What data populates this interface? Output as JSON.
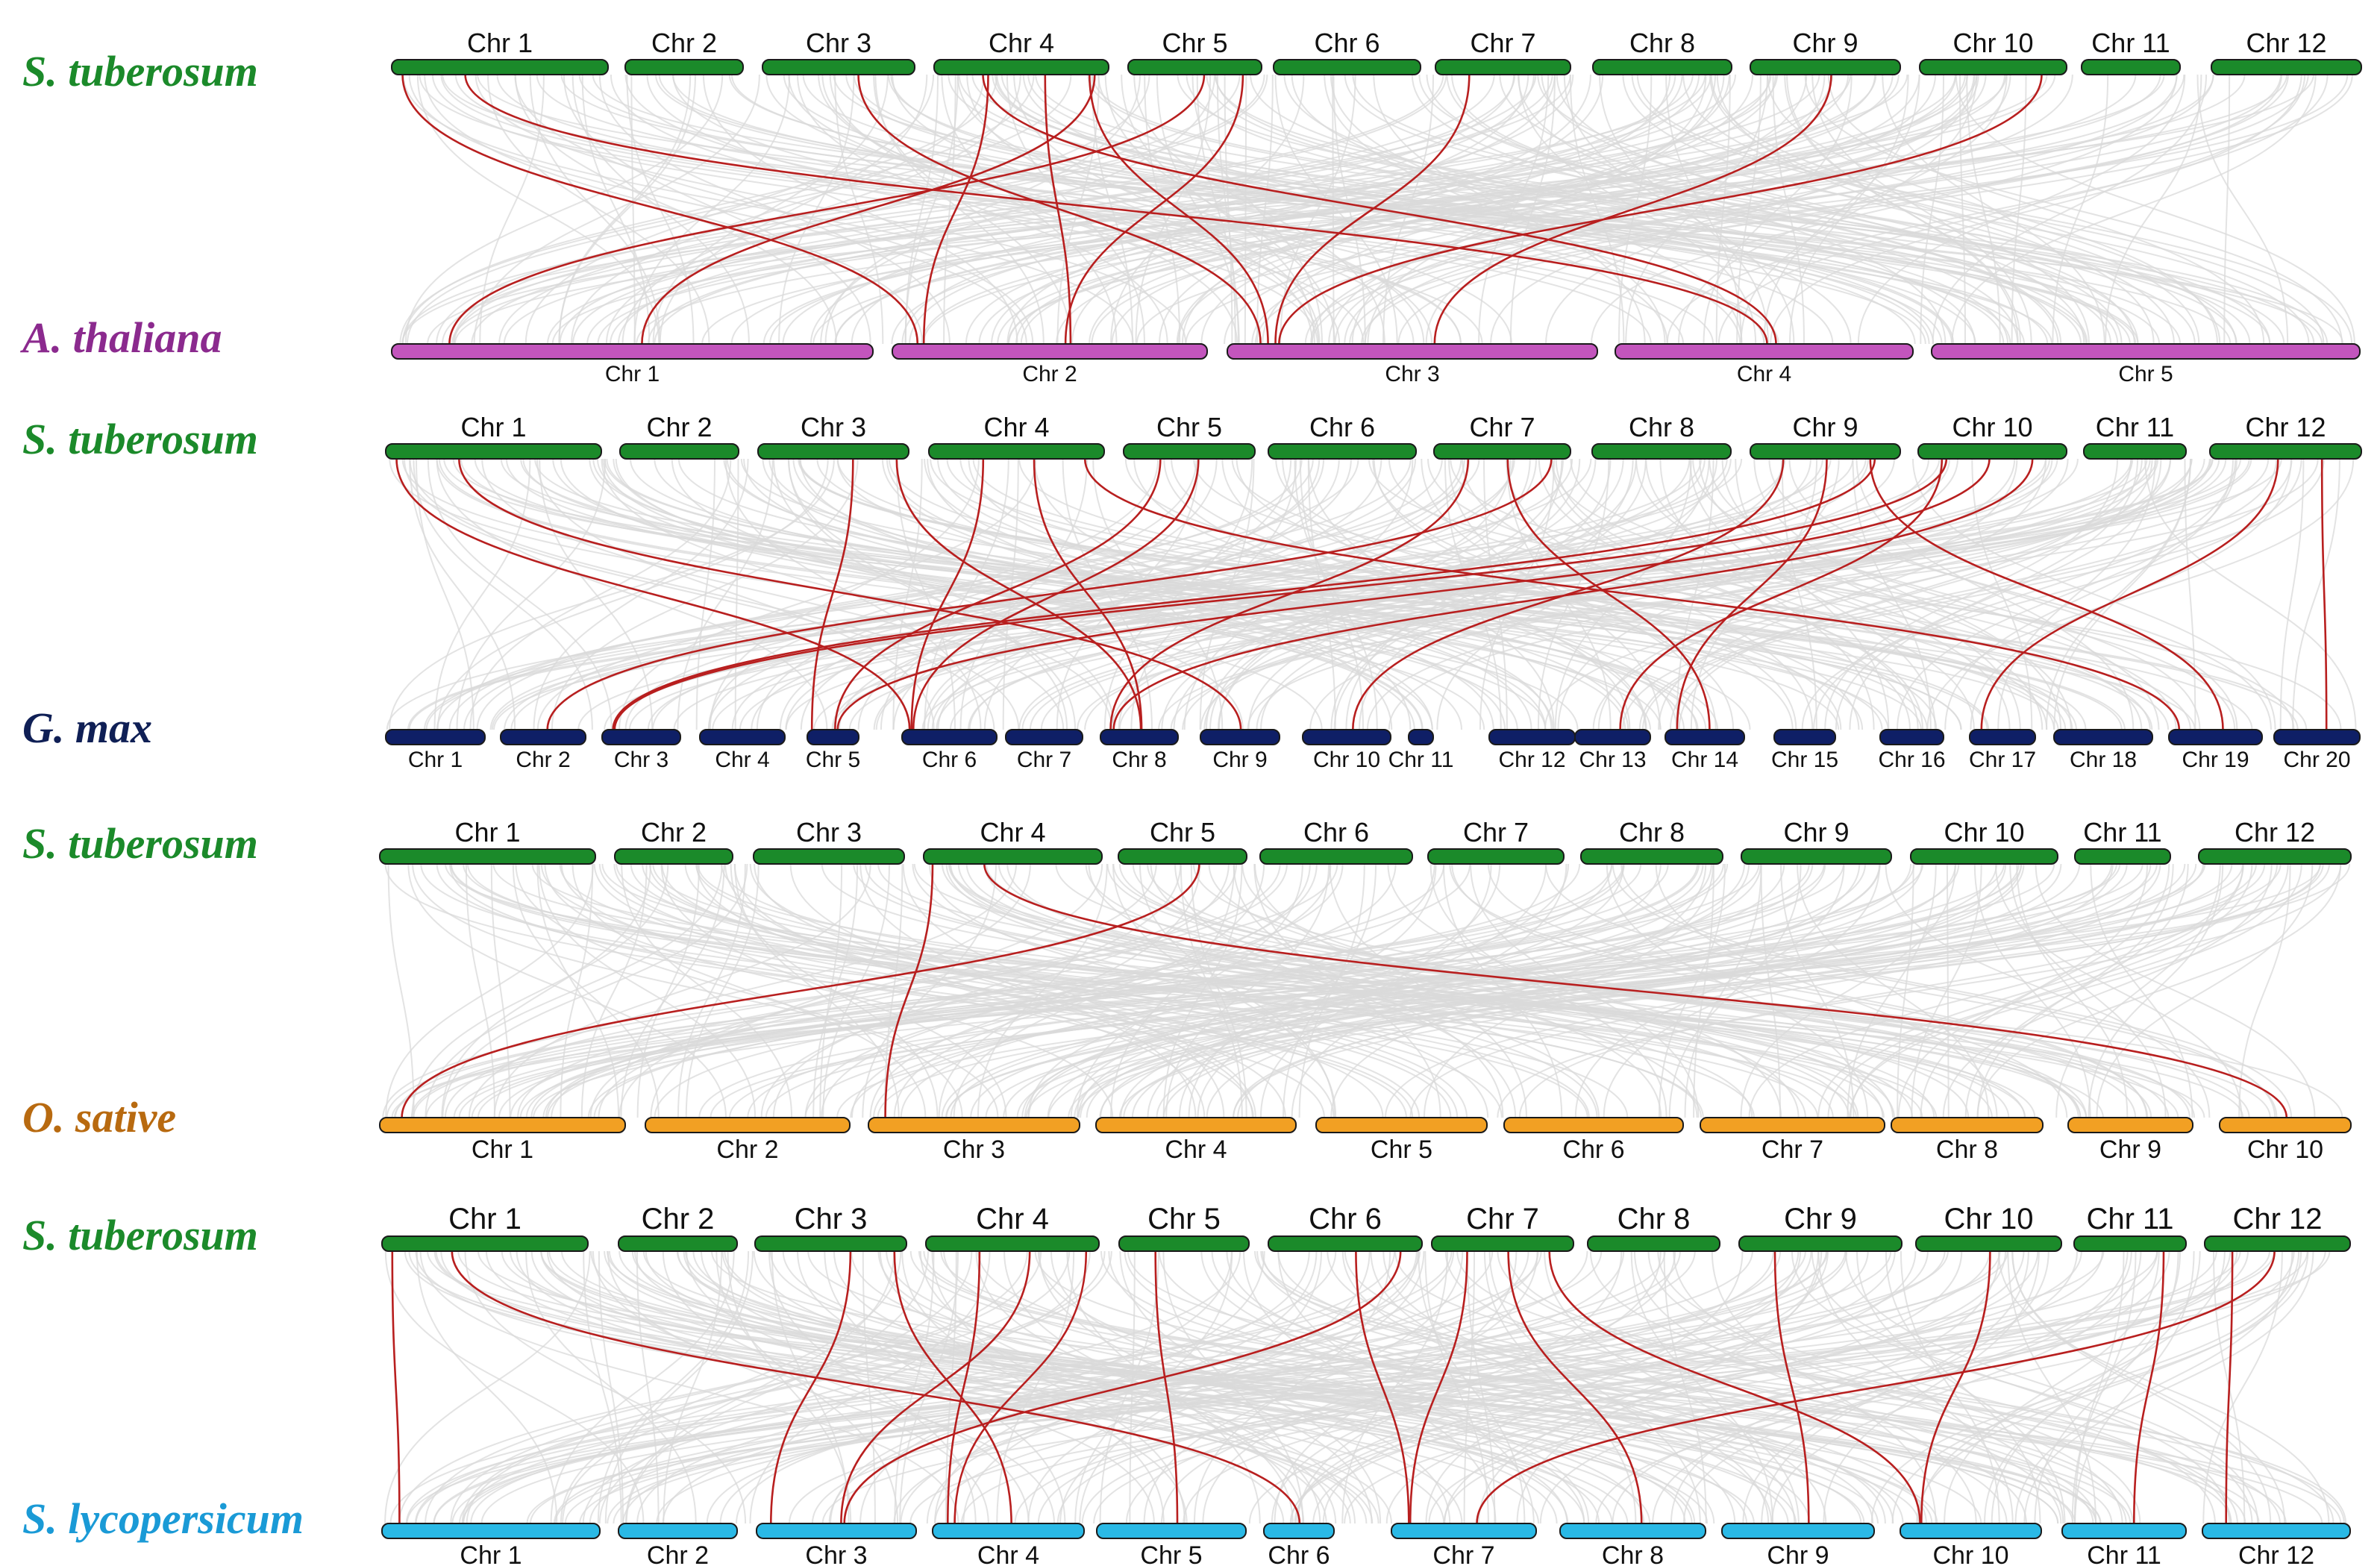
{
  "colors": {
    "s_tuberosum": "#1b8a2a",
    "a_thaliana": "#c355bd",
    "g_max": "#0f1f66",
    "o_sativa": "#f2a023",
    "s_lycopersicum": "#2ab9e6",
    "link_highlight": "#b81f1f",
    "link_background": "#d9d9d9",
    "label_a_thaliana": "#8b2a8e",
    "label_g_max": "#0f1f55",
    "label_o_sativa": "#b86a10",
    "label_s_lycopersicum": "#1a9ad6"
  },
  "panels": [
    {
      "id": "p1",
      "top_species": "S. tuberosum",
      "bottom_species": "A. thaliana",
      "top_chromosomes": [
        "Chr 1",
        "Chr 2",
        "Chr 3",
        "Chr 4",
        "Chr 5",
        "Chr 6",
        "Chr 7",
        "Chr 8",
        "Chr 9",
        "Chr 10",
        "Chr 11",
        "Chr 12"
      ],
      "bottom_chromosomes": [
        "Chr 1",
        "Chr 2",
        "Chr 3",
        "Chr 4",
        "Chr 5"
      ],
      "links": [
        [
          "Chr 1",
          "Chr 2"
        ],
        [
          "Chr 1",
          "Chr 4"
        ],
        [
          "Chr 3",
          "Chr 3"
        ],
        [
          "Chr 4",
          "Chr 1"
        ],
        [
          "Chr 4",
          "Chr 2"
        ],
        [
          "Chr 4",
          "Chr 2"
        ],
        [
          "Chr 4",
          "Chr 3"
        ],
        [
          "Chr 4",
          "Chr 4"
        ],
        [
          "Chr 5",
          "Chr 1"
        ],
        [
          "Chr 5",
          "Chr 2"
        ],
        [
          "Chr 7",
          "Chr 3"
        ],
        [
          "Chr 9",
          "Chr 3"
        ],
        [
          "Chr 10",
          "Chr 3"
        ]
      ]
    },
    {
      "id": "p2",
      "top_species": "S. tuberosum",
      "bottom_species": "G. max",
      "top_chromosomes": [
        "Chr 1",
        "Chr 2",
        "Chr 3",
        "Chr 4",
        "Chr 5",
        "Chr 6",
        "Chr 7",
        "Chr 8",
        "Chr 9",
        "Chr 10",
        "Chr 11",
        "Chr 12"
      ],
      "bottom_chromosomes": [
        "Chr 1",
        "Chr 2",
        "Chr 3",
        "Chr 4",
        "Chr 5",
        "Chr 6",
        "Chr 7",
        "Chr 8",
        "Chr 9",
        "Chr 10",
        "Chr 11",
        "Chr 12",
        "Chr 13",
        "Chr 14",
        "Chr 15",
        "Chr 16",
        "Chr 17",
        "Chr 18",
        "Chr 19",
        "Chr 20"
      ],
      "links": [
        [
          "Chr 1",
          "Chr 6"
        ],
        [
          "Chr 1",
          "Chr 9"
        ],
        [
          "Chr 3",
          "Chr 5"
        ],
        [
          "Chr 3",
          "Chr 8"
        ],
        [
          "Chr 4",
          "Chr 6"
        ],
        [
          "Chr 4",
          "Chr 8"
        ],
        [
          "Chr 4",
          "Chr 19"
        ],
        [
          "Chr 5",
          "Chr 5"
        ],
        [
          "Chr 5",
          "Chr 6"
        ],
        [
          "Chr 7",
          "Chr 2"
        ],
        [
          "Chr 7",
          "Chr 8"
        ],
        [
          "Chr 7",
          "Chr 14"
        ],
        [
          "Chr 9",
          "Chr 3"
        ],
        [
          "Chr 9",
          "Chr 10"
        ],
        [
          "Chr 9",
          "Chr 14"
        ],
        [
          "Chr 9",
          "Chr 19"
        ],
        [
          "Chr 10",
          "Chr 3"
        ],
        [
          "Chr 10",
          "Chr 5"
        ],
        [
          "Chr 10",
          "Chr 8"
        ],
        [
          "Chr 10",
          "Chr 13"
        ],
        [
          "Chr 12",
          "Chr 17"
        ],
        [
          "Chr 12",
          "Chr 20"
        ]
      ]
    },
    {
      "id": "p3",
      "top_species": "S. tuberosum",
      "bottom_species": "O. sative",
      "top_chromosomes": [
        "Chr 1",
        "Chr 2",
        "Chr 3",
        "Chr 4",
        "Chr 5",
        "Chr 6",
        "Chr 7",
        "Chr 8",
        "Chr 9",
        "Chr 10",
        "Chr 11",
        "Chr 12"
      ],
      "bottom_chromosomes": [
        "Chr 1",
        "Chr 2",
        "Chr 3",
        "Chr 4",
        "Chr 5",
        "Chr 6",
        "Chr 7",
        "Chr 8",
        "Chr 9",
        "Chr 10"
      ],
      "links": [
        [
          "Chr 4",
          "Chr 3"
        ],
        [
          "Chr 4",
          "Chr 10"
        ],
        [
          "Chr 5",
          "Chr 1"
        ]
      ]
    },
    {
      "id": "p4",
      "top_species": "S. tuberosum",
      "bottom_species": "S. lycopersicum",
      "top_chromosomes": [
        "Chr 1",
        "Chr 2",
        "Chr 3",
        "Chr 4",
        "Chr 5",
        "Chr 6",
        "Chr 7",
        "Chr 8",
        "Chr 9",
        "Chr 10",
        "Chr 11",
        "Chr 12"
      ],
      "bottom_chromosomes": [
        "Chr 1",
        "Chr 2",
        "Chr 3",
        "Chr 4",
        "Chr 5",
        "Chr 6",
        "Chr 7",
        "Chr 8",
        "Chr 9",
        "Chr 10",
        "Chr 11",
        "Chr 12"
      ],
      "links": [
        [
          "Chr 1",
          "Chr 1"
        ],
        [
          "Chr 1",
          "Chr 6"
        ],
        [
          "Chr 3",
          "Chr 3"
        ],
        [
          "Chr 3",
          "Chr 4"
        ],
        [
          "Chr 4",
          "Chr 4"
        ],
        [
          "Chr 4",
          "Chr 3"
        ],
        [
          "Chr 4",
          "Chr 4"
        ],
        [
          "Chr 5",
          "Chr 5"
        ],
        [
          "Chr 6",
          "Chr 7"
        ],
        [
          "Chr 6",
          "Chr 3"
        ],
        [
          "Chr 7",
          "Chr 7"
        ],
        [
          "Chr 7",
          "Chr 8"
        ],
        [
          "Chr 7",
          "Chr 10"
        ],
        [
          "Chr 9",
          "Chr 9"
        ],
        [
          "Chr 10",
          "Chr 10"
        ],
        [
          "Chr 11",
          "Chr 11"
        ],
        [
          "Chr 12",
          "Chr 12"
        ],
        [
          "Chr 12",
          "Chr 7"
        ]
      ]
    }
  ]
}
